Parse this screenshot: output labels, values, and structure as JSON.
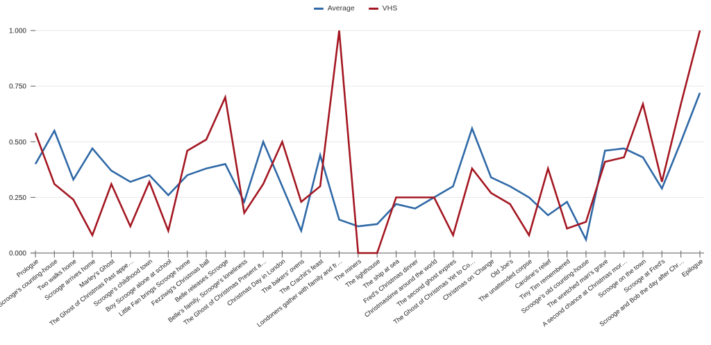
{
  "chart": {
    "grid_color": "#e6e6e6",
    "axis_color": "#757575",
    "text_color": "#212121",
    "background": "#ffffff",
    "y_axis": {
      "tick_labels": [
        "0.000",
        "0.250",
        "0.500",
        "0.750",
        "1.000"
      ]
    }
  },
  "chart_data": {
    "type": "line",
    "title": "",
    "xlabel": "",
    "ylabel": "",
    "ylim": [
      0,
      1
    ],
    "y_ticks": [
      0,
      0.25,
      0.5,
      0.75,
      1
    ],
    "grid": "horizontal",
    "legend_position": "top",
    "categories": [
      "Prologue",
      "Scrooge's counting-house",
      "Two walks home",
      "Scrooge arrives home",
      "Marley's Ghost",
      "The Ghost of Christmas Past appe…",
      "Scrooge's childhood town",
      "Boy Scrooge alone at school",
      "Little Fan brings Scrooge home",
      "Fezziwig's Christmas ball",
      "Belle releases Scrooge",
      "Belle's family, Scrooge's loneliness",
      "The Ghost of Christmas Present a…",
      "Christmas Day in London",
      "The bakers' ovens",
      "The Crachit's feast",
      "Londoners gather with family and fr…",
      "The miners",
      "The lighthouse",
      "The ship at sea",
      "Fred's Christmas dinner",
      "Christmastime around the world",
      "The second ghost expires",
      "The Ghost of Christmas Yet to Co…",
      "Christmas on 'Change",
      "Old Joe's",
      "The unattended corpse",
      "Caroline's relief",
      "Tiny Tim remembered",
      "Scrooge's old counting-house",
      "The wretched man's grave",
      "A second chance at Christmas mor…",
      "Scrooge on the town",
      "Scrooge at Fred's",
      "Scrooge and Bob the day after Chr…",
      "Epilogue"
    ],
    "series": [
      {
        "name": "Average",
        "color": "#2e68a6",
        "values": [
          0.4,
          0.55,
          0.33,
          0.47,
          0.37,
          0.32,
          0.35,
          0.26,
          0.35,
          0.38,
          0.4,
          0.23,
          0.5,
          0.3,
          0.1,
          0.44,
          0.15,
          0.12,
          0.13,
          0.22,
          0.2,
          0.25,
          0.3,
          0.56,
          0.34,
          0.3,
          0.25,
          0.17,
          0.23,
          0.06,
          0.46,
          0.47,
          0.43,
          0.29,
          0.5,
          0.72
        ]
      },
      {
        "name": "VHS",
        "color": "#a31621",
        "values": [
          0.54,
          0.31,
          0.24,
          0.08,
          0.31,
          0.12,
          0.32,
          0.1,
          0.46,
          0.51,
          0.7,
          0.18,
          0.31,
          0.5,
          0.23,
          0.3,
          1.0,
          0.0,
          0.0,
          0.25,
          0.25,
          0.25,
          0.08,
          0.38,
          0.27,
          0.22,
          0.08,
          0.38,
          0.11,
          0.14,
          0.41,
          0.43,
          0.67,
          0.32,
          0.67,
          1.0
        ]
      }
    ]
  }
}
